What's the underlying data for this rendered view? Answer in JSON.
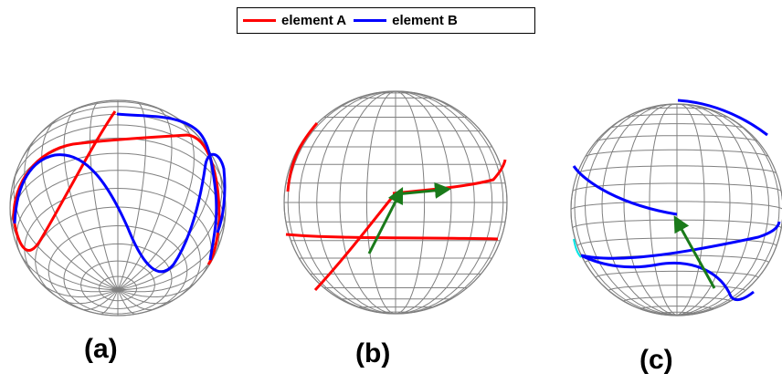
{
  "legend": {
    "entries": [
      {
        "label": "element A",
        "color": "#ff0000"
      },
      {
        "label": "element B",
        "color": "#0000ff"
      }
    ]
  },
  "panels": [
    {
      "label": "(a)"
    },
    {
      "label": "(b)"
    },
    {
      "label": "(c)"
    }
  ],
  "colors": {
    "grid": "#808080",
    "element_a": "#ff0000",
    "element_b": "#0000ff",
    "arrow": "#1a7a1a",
    "accent_cyan": "#00e5e5"
  }
}
